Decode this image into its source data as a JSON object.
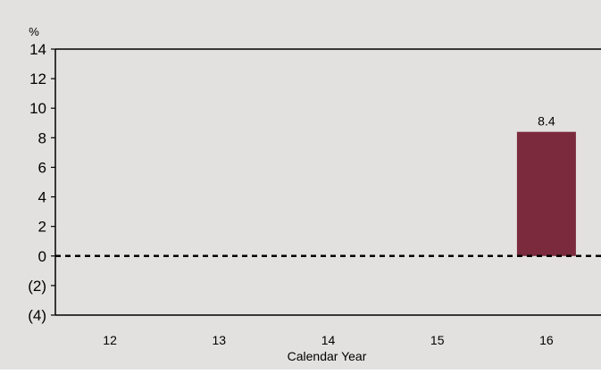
{
  "chart_data": {
    "type": "bar",
    "title": "",
    "unit_label": "%",
    "xlabel": "Calendar Year",
    "ylabel": "",
    "categories": [
      "12",
      "13",
      "14",
      "15",
      "16"
    ],
    "series": [
      {
        "values": [
          null,
          null,
          null,
          null,
          8.4
        ]
      }
    ],
    "data_labels": [
      "",
      "",
      "",
      "",
      "8.4"
    ],
    "ylim": [
      -4,
      14
    ],
    "y_ticks": [
      14,
      12,
      10,
      8,
      6,
      4,
      2,
      0,
      -2,
      -4
    ],
    "y_tick_labels": [
      "14",
      "12",
      "10",
      "8",
      "6",
      "4",
      "2",
      "0",
      "(2)",
      "(4)"
    ],
    "zero_line": "dashed",
    "grid": false,
    "colors": {
      "plot_background": "#e2e1df",
      "bar": "#7b2a3d",
      "axis": "#000000"
    }
  }
}
